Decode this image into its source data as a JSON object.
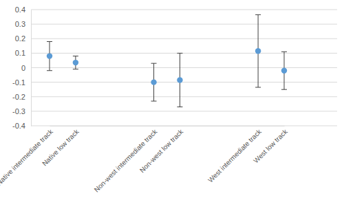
{
  "chart_data": {
    "type": "scatter",
    "categories": [
      "Native intermediate track",
      "Native low track",
      null,
      null,
      "Non-west intermediate track",
      "Non-west low track",
      null,
      null,
      "West intermediate track",
      "West low track"
    ],
    "values": [
      0.08,
      0.035,
      null,
      null,
      -0.1,
      -0.085,
      null,
      null,
      0.115,
      -0.02
    ],
    "error": [
      0.1,
      0.045,
      null,
      null,
      0.13,
      0.185,
      null,
      null,
      0.25,
      0.13
    ],
    "color": "#5b9bd5",
    "marker": "circle",
    "ylim": [
      -0.4,
      0.4
    ],
    "yticks": [
      -0.4,
      -0.3,
      -0.2,
      -0.1,
      0,
      0.1,
      0.2,
      0.3,
      0.4
    ],
    "grid": true
  }
}
